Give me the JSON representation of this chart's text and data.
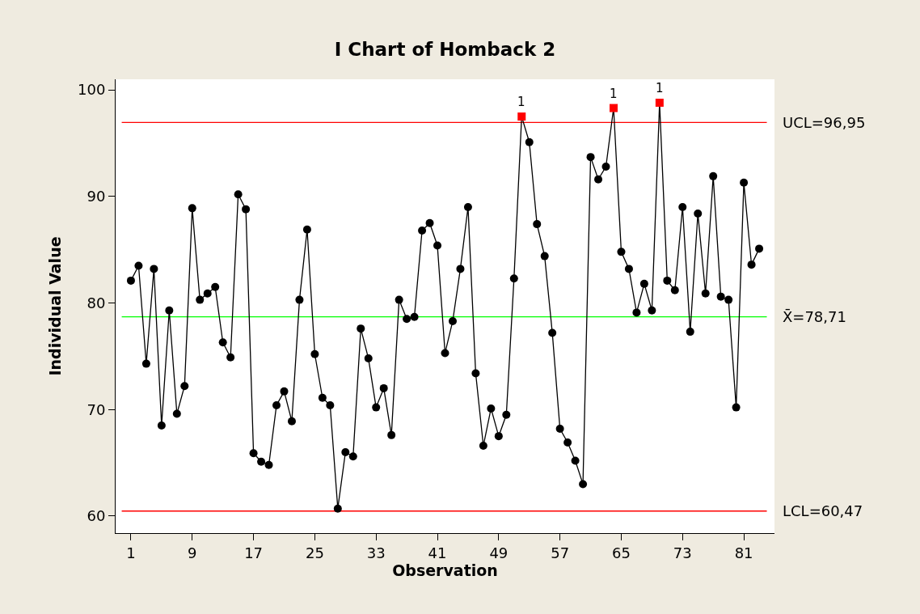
{
  "chart_data": {
    "type": "line",
    "title": "I Chart of Homback 2",
    "xlabel": "Observation",
    "ylabel": "Individual Value",
    "x": [
      1,
      2,
      3,
      4,
      5,
      6,
      7,
      8,
      9,
      10,
      11,
      12,
      13,
      14,
      15,
      16,
      17,
      18,
      19,
      20,
      21,
      22,
      23,
      24,
      25,
      26,
      27,
      28,
      29,
      30,
      31,
      32,
      33,
      34,
      35,
      36,
      37,
      38,
      39,
      40,
      41,
      42,
      43,
      44,
      45,
      46,
      47,
      48,
      49,
      50,
      51,
      52,
      53,
      54,
      55,
      56,
      57,
      58,
      59,
      60,
      61,
      62,
      63,
      64,
      65,
      66,
      67,
      68,
      69,
      70,
      71,
      72,
      73,
      74,
      75,
      76,
      77,
      78,
      79,
      80,
      81,
      82,
      83
    ],
    "series": [
      {
        "color": "#000000",
        "values": [
          82.1,
          83.5,
          74.3,
          83.2,
          68.5,
          79.3,
          69.6,
          72.2,
          88.9,
          80.3,
          80.9,
          81.5,
          76.3,
          74.9,
          90.2,
          88.8,
          65.9,
          65.1,
          64.8,
          70.4,
          71.7,
          68.9,
          80.3,
          86.9,
          75.2,
          71.1,
          70.4,
          60.7,
          66.0,
          65.6,
          77.6,
          74.8,
          70.2,
          72.0,
          67.6,
          80.3,
          78.5,
          78.7,
          86.8,
          87.5,
          85.4,
          75.3,
          78.3,
          83.2,
          89.0,
          73.4,
          66.6,
          70.1,
          67.5,
          69.5,
          82.3,
          97.5,
          95.1,
          87.4,
          84.4,
          77.2,
          68.2,
          66.9,
          65.2,
          63.0,
          93.7,
          91.6,
          92.8,
          98.3,
          84.8,
          83.2,
          79.1,
          81.8,
          79.3,
          98.8,
          82.1,
          81.2,
          89.0,
          77.3,
          88.4,
          80.9,
          91.9,
          80.6,
          80.3,
          70.2,
          91.3,
          83.6,
          85.1
        ],
        "colors": [
          "#000000",
          "#000000",
          "#000000",
          "#000000",
          "#000000",
          "#000000",
          "#000000",
          "#000000",
          "#000000",
          "#000000",
          "#000000",
          "#000000",
          "#000000",
          "#000000",
          "#000000",
          "#000000",
          "#000000",
          "#000000",
          "#000000",
          "#000000",
          "#000000",
          "#000000",
          "#000000",
          "#000000",
          "#000000",
          "#000000",
          "#000000",
          "#000000",
          "#000000",
          "#000000",
          "#000000",
          "#000000",
          "#000000",
          "#000000",
          "#000000",
          "#000000",
          "#000000",
          "#000000",
          "#000000",
          "#000000",
          "#000000",
          "#000000",
          "#000000",
          "#000000",
          "#000000",
          "#000000",
          "#000000",
          "#000000",
          "#000000",
          "#000000",
          "#000000",
          "#ff0000",
          "#000000",
          "#000000",
          "#000000",
          "#000000",
          "#000000",
          "#000000",
          "#000000",
          "#000000",
          "#000000",
          "#000000",
          "#000000",
          "#ff0000",
          "#000000",
          "#000000",
          "#000000",
          "#000000",
          "#000000",
          "#ff0000",
          "#000000",
          "#000000",
          "#000000",
          "#000000",
          "#000000",
          "#000000",
          "#000000",
          "#000000",
          "#000000",
          "#000000",
          "#000000",
          "#000000",
          "#000000"
        ]
      }
    ],
    "marker": "circle",
    "annotations": [
      {
        "text": "1",
        "x": 52,
        "y": 97.5
      },
      {
        "text": "1",
        "x": 64,
        "y": 98.3
      },
      {
        "text": "1",
        "x": 70,
        "y": 98.8
      }
    ],
    "ref_lines": [
      {
        "axis": "y",
        "value": 96.95,
        "label": "UCL=96,95",
        "color": "#ff0000"
      },
      {
        "axis": "y",
        "value": 78.71,
        "label": "X̄=78,71",
        "color": "#00ff00"
      },
      {
        "axis": "y",
        "value": 60.47,
        "label": "LCL=60,47",
        "color": "#ff0000"
      }
    ],
    "xlim": [
      -1,
      85
    ],
    "xticks": [
      1,
      9,
      17,
      25,
      33,
      41,
      49,
      57,
      65,
      73,
      81
    ],
    "ylim": [
      58.4,
      101
    ],
    "yticks": [
      60,
      70,
      80,
      90,
      100
    ],
    "grid": false
  }
}
